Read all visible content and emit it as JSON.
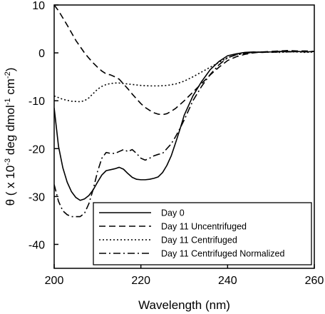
{
  "chart_data": {
    "type": "line",
    "xlabel": "Wavelength (nm)",
    "ylabel": {
      "parts": [
        "θ ( x 10",
        "-3",
        " deg dmol",
        "-1",
        " cm",
        "-2",
        ")"
      ]
    },
    "xlim": [
      200,
      260
    ],
    "ylim": [
      -45,
      10
    ],
    "xticks": [
      200,
      220,
      240,
      260
    ],
    "yticks": [
      10,
      0,
      -10,
      -20,
      -30,
      -40
    ],
    "grid": false,
    "legend_position": "bottom-right",
    "series": [
      {
        "name": "Day 0",
        "style": "solid",
        "x": [
          200,
          201,
          202,
          203,
          204,
          205,
          206,
          207,
          208,
          209,
          210,
          211,
          212,
          213,
          214,
          215,
          216,
          217,
          218,
          219,
          220,
          221,
          222,
          223,
          224,
          225,
          226,
          227,
          228,
          229,
          230,
          232,
          234,
          236,
          238,
          240,
          242,
          244,
          246,
          248,
          250,
          252,
          254,
          256,
          258,
          260
        ],
        "y": [
          -11.5,
          -19.5,
          -24,
          -27,
          -29,
          -30.2,
          -30.8,
          -30.5,
          -29.8,
          -28.6,
          -27,
          -25.5,
          -24.6,
          -24.4,
          -24.2,
          -23.9,
          -24.3,
          -25.2,
          -26,
          -26.4,
          -26.5,
          -26.5,
          -26.4,
          -26.2,
          -25.9,
          -25,
          -23.5,
          -21.5,
          -18.8,
          -16,
          -13,
          -9,
          -6,
          -3.5,
          -1.8,
          -0.6,
          -0.2,
          0.1,
          0.2,
          0.1,
          0.2,
          0.3,
          0.2,
          0.3,
          0.2,
          0.3
        ]
      },
      {
        "name": "Day 11 Uncentrifuged",
        "style": "dashed",
        "x": [
          200,
          201,
          202,
          203,
          204,
          205,
          206,
          207,
          208,
          209,
          210,
          211,
          212,
          213,
          214,
          215,
          216,
          217,
          218,
          219,
          220,
          221,
          222,
          223,
          224,
          225,
          226,
          227,
          228,
          229,
          230,
          232,
          234,
          236,
          238,
          240,
          242,
          244,
          246,
          248,
          250,
          252,
          254,
          256,
          258,
          260
        ],
        "y": [
          10,
          8.8,
          7.3,
          5.8,
          4.2,
          2.6,
          1.3,
          0,
          -1.1,
          -2.1,
          -3,
          -3.8,
          -4.4,
          -4.6,
          -5,
          -5.5,
          -6.5,
          -7.5,
          -8.6,
          -9.6,
          -10.6,
          -11.4,
          -12,
          -12.5,
          -12.8,
          -12.9,
          -12.7,
          -12.2,
          -11.6,
          -10.8,
          -10,
          -8.2,
          -6.4,
          -4.6,
          -3,
          -1.6,
          -0.8,
          -0.3,
          0,
          0.2,
          0.3,
          0.4,
          0.5,
          0.4,
          0.4,
          0.3
        ]
      },
      {
        "name": "Day 11 Centrifuged",
        "style": "dotted",
        "x": [
          200,
          202,
          204,
          206,
          207,
          208,
          209,
          210,
          211,
          212,
          213,
          214,
          215,
          216,
          217,
          218,
          219,
          220,
          222,
          224,
          226,
          228,
          230,
          232,
          234,
          236,
          238,
          240,
          242,
          244,
          246,
          248,
          250,
          252,
          254,
          256,
          258,
          260
        ],
        "y": [
          -9,
          -9.7,
          -10.1,
          -10.2,
          -10,
          -9.4,
          -8.5,
          -7.6,
          -7,
          -6.6,
          -6.4,
          -6.3,
          -6.3,
          -6.4,
          -6.5,
          -6.6,
          -6.7,
          -6.8,
          -6.9,
          -6.9,
          -6.8,
          -6.5,
          -5.9,
          -5,
          -4,
          -3,
          -2,
          -1,
          -0.4,
          -0.1,
          0.1,
          0.2,
          0.2,
          0.1,
          0.2,
          0.2,
          0.1,
          0.2
        ]
      },
      {
        "name": "Day 11 Centrifuged Normalized",
        "style": "dashdot",
        "x": [
          200,
          201,
          202,
          203,
          204,
          205,
          206,
          207,
          208,
          209,
          210,
          211,
          212,
          213,
          214,
          215,
          216,
          217,
          218,
          219,
          220,
          221,
          222,
          223,
          224,
          225,
          226,
          227,
          228,
          229,
          230,
          232,
          234,
          236,
          238,
          240,
          242,
          244,
          246,
          248,
          250,
          252,
          254,
          256,
          258,
          260
        ],
        "y": [
          -27.5,
          -31,
          -33,
          -33.8,
          -34.2,
          -34.2,
          -34.2,
          -33.5,
          -31.5,
          -28.5,
          -24.8,
          -22,
          -20.8,
          -21,
          -21,
          -20.6,
          -20.2,
          -20.6,
          -20.2,
          -21,
          -22,
          -22.4,
          -22,
          -21.5,
          -21.2,
          -21,
          -20,
          -19,
          -17.5,
          -15.8,
          -14,
          -10,
          -7,
          -4.5,
          -2.5,
          -1,
          -0.4,
          -0.1,
          0.1,
          0.2,
          0.1,
          0.2,
          0.3,
          0.2,
          0.3,
          0.2
        ]
      }
    ]
  }
}
